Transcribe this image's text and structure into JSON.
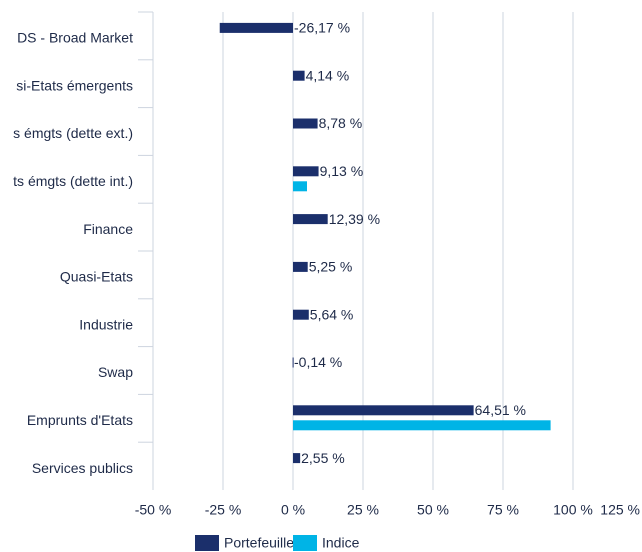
{
  "chart_data": {
    "type": "hbar",
    "categories": [
      "DS - Broad Market",
      "si-Etats émergents",
      "s émgts (dette ext.)",
      "ts émgts (dette int.)",
      "Finance",
      "Quasi-Etats",
      "Industrie",
      "Swap",
      "Emprunts d'Etats",
      "Services publics"
    ],
    "series": [
      {
        "name": "Portefeuille",
        "color": "#1b2f6b",
        "values": [
          -26.17,
          4.14,
          8.78,
          9.13,
          12.39,
          5.25,
          5.64,
          -0.14,
          64.51,
          2.55
        ],
        "value_labels": [
          "-26,17 %",
          "4,14 %",
          "8,78 %",
          "9,13 %",
          "12,39 %",
          "5,25 %",
          "5,64 %",
          "-0,14 %",
          "64,51 %",
          "2,55 %"
        ]
      },
      {
        "name": "Indice",
        "color": "#00b4e6",
        "values": [
          null,
          null,
          null,
          5,
          null,
          null,
          null,
          null,
          92,
          null
        ]
      }
    ],
    "xlim": [
      -50,
      125
    ],
    "xticks": [
      {
        "value": -50,
        "label": "-50 %"
      },
      {
        "value": -25,
        "label": "-25 %"
      },
      {
        "value": 0,
        "label": "0 %"
      },
      {
        "value": 25,
        "label": "25 %"
      },
      {
        "value": 50,
        "label": "50 %"
      },
      {
        "value": 75,
        "label": "75 %"
      },
      {
        "value": 100,
        "label": "100 %"
      },
      {
        "value": 125,
        "label": "125 %"
      }
    ],
    "grid": true
  }
}
